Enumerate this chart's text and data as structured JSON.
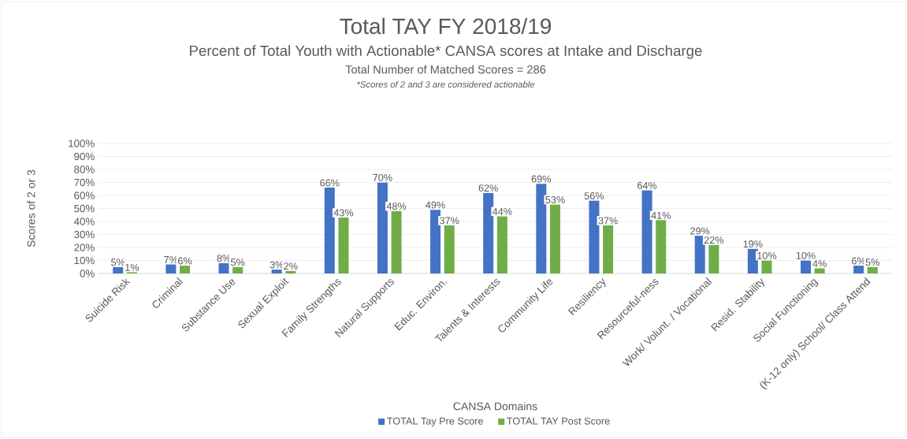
{
  "chart_data": {
    "type": "bar",
    "title": "Total TAY FY 2018/19",
    "subtitle": "Percent of Total Youth with Actionable* CANSA scores at Intake and Discharge",
    "annotations": [
      "Total Number of Matched Scores = 286",
      "*Scores of 2 and 3 are considered actionable"
    ],
    "xlabel": "CANSA Domains",
    "ylabel": "Scores of 2 or 3",
    "categories": [
      "Suicide Risk",
      "Criminal",
      "Substance Use",
      "Sexual Exploit",
      "Family Strengths",
      "Natural Supports",
      "Educ. Environ.",
      "Talents & Interests",
      "Community Life",
      "Resiliency",
      "Resourceful-ness",
      "Work/ Volunt. / Vocational",
      "Resid. Stability",
      "Social Functioning",
      "(K-12 only)  School/ Class Attend"
    ],
    "series": [
      {
        "name": "TOTAL Tay Pre Score",
        "color": "#4472c4",
        "values": [
          5,
          7,
          8,
          3,
          66,
          70,
          49,
          62,
          69,
          56,
          64,
          29,
          19,
          10,
          6
        ],
        "value_labels": [
          "5%",
          "7%",
          "8%",
          "3%",
          "66%",
          "70%",
          "49%",
          "62%",
          "69%",
          "56%",
          "64%",
          "29%",
          "19%",
          "10%",
          "6%"
        ]
      },
      {
        "name": "TOTAL TAY Post Score",
        "color": "#70ad47",
        "values": [
          1,
          6,
          5,
          2,
          43,
          48,
          37,
          44,
          53,
          37,
          41,
          22,
          10,
          4,
          5
        ],
        "value_labels": [
          "1%",
          "6%",
          "5%",
          "2%",
          "43%",
          "48%",
          "37%",
          "44%",
          "53%",
          "37%",
          "41%",
          "22%",
          "10%",
          "4%",
          "5%"
        ]
      }
    ],
    "ylim": [
      0,
      100
    ],
    "yticks": [
      {
        "value": 0,
        "label": "0%"
      },
      {
        "value": 10,
        "label": "10%"
      },
      {
        "value": 20,
        "label": "20%"
      },
      {
        "value": 30,
        "label": "30%"
      },
      {
        "value": 40,
        "label": "40%"
      },
      {
        "value": 50,
        "label": "50%"
      },
      {
        "value": 60,
        "label": "60%"
      },
      {
        "value": 70,
        "label": "70%"
      },
      {
        "value": 80,
        "label": "80%"
      },
      {
        "value": 90,
        "label": "90%"
      },
      {
        "value": 100,
        "label": "100%"
      }
    ],
    "grid": "y",
    "legend": "bottom"
  }
}
